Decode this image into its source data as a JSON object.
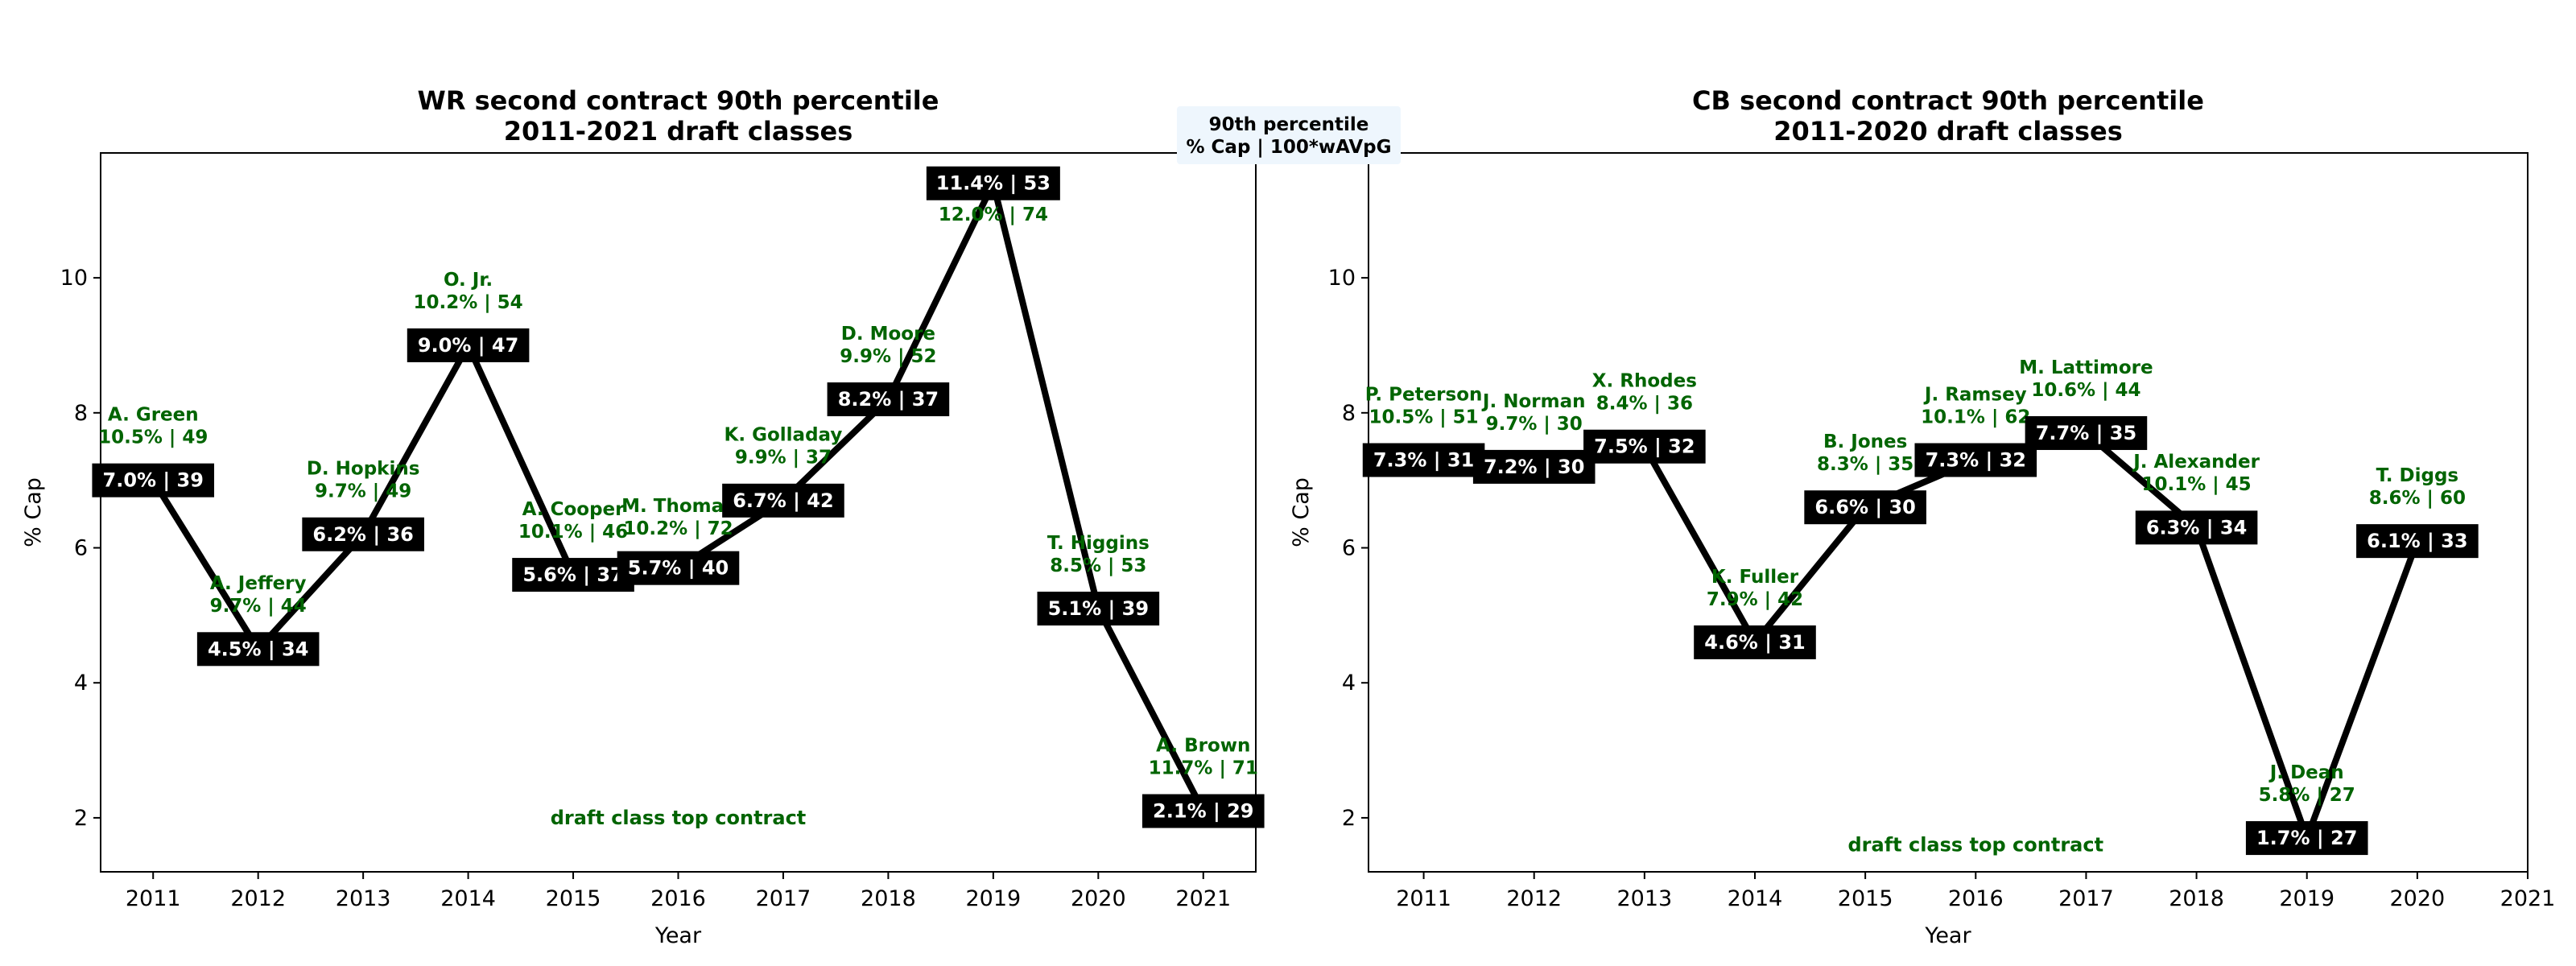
{
  "legend": {
    "line1": "90th percentile",
    "line2": "% Cap | 100*wAVpG",
    "bg": "#eef6fd"
  },
  "colors": {
    "line": "#000000",
    "label_box": "#000000",
    "label_text": "#ffffff",
    "annotation": "#006400"
  },
  "chart_data": [
    {
      "type": "line",
      "title_lines": [
        "WR second contract 90th percentile",
        "2011-2021 draft classes"
      ],
      "xlabel": "Year",
      "ylabel": "% Cap",
      "xlim": [
        2010.5,
        2021.5
      ],
      "ylim": [
        1.2,
        11.85
      ],
      "xticks": [
        2011,
        2012,
        2013,
        2014,
        2015,
        2016,
        2017,
        2018,
        2019,
        2020,
        2021
      ],
      "yticks": [
        2,
        4,
        6,
        8,
        10
      ],
      "x": [
        2011,
        2012,
        2013,
        2014,
        2015,
        2016,
        2017,
        2018,
        2019,
        2020,
        2021
      ],
      "y": [
        7.0,
        4.5,
        6.2,
        9.0,
        5.6,
        5.7,
        6.7,
        8.2,
        11.4,
        5.1,
        2.1
      ],
      "point_labels": [
        "7.0% | 39",
        "4.5% | 34",
        "6.2% | 36",
        "9.0% | 47",
        "5.6% | 37",
        "5.7% | 40",
        "6.7% | 42",
        "8.2% | 37",
        "11.4% | 53",
        "5.1% | 39",
        "2.1% | 29"
      ],
      "top_contracts": [
        {
          "name": "A. Green",
          "value": "10.5% | 49",
          "x": 2011,
          "y": 7.55
        },
        {
          "name": "A. Jeffery",
          "value": "9.7% | 44",
          "x": 2012,
          "y": 5.05
        },
        {
          "name": "D. Hopkins",
          "value": "9.7% | 49",
          "x": 2013,
          "y": 6.75
        },
        {
          "name": "O. Jr.",
          "value": "10.2% | 54",
          "x": 2014,
          "y": 9.55
        },
        {
          "name": "A. Cooper",
          "value": "10.1% | 46",
          "x": 2015,
          "y": 6.15
        },
        {
          "name": "M. Thomas",
          "value": "10.2% | 72",
          "x": 2016,
          "y": 6.2
        },
        {
          "name": "K. Golladay",
          "value": "9.9% | 37",
          "x": 2017,
          "y": 7.25
        },
        {
          "name": "D. Moore",
          "value": "9.9% | 52",
          "x": 2018,
          "y": 8.75
        },
        {
          "name": "A. Brown",
          "value": "12.0% | 74",
          "x": 2019,
          "y": 10.85
        },
        {
          "name": "T. Higgins",
          "value": "8.5% | 53",
          "x": 2020,
          "y": 5.65
        },
        {
          "name": "A. Brown",
          "value": "11.7% | 71",
          "x": 2021,
          "y": 2.65
        }
      ],
      "footnote": {
        "text": "draft class top contract",
        "x": 2016.0,
        "y": 2.0
      }
    },
    {
      "type": "line",
      "title_lines": [
        "CB second contract 90th percentile",
        "2011-2020 draft classes"
      ],
      "xlabel": "Year",
      "ylabel": "% Cap",
      "xlim": [
        2010.5,
        2021.0
      ],
      "ylim": [
        1.2,
        11.85
      ],
      "xticks": [
        2011,
        2012,
        2013,
        2014,
        2015,
        2016,
        2017,
        2018,
        2019,
        2020,
        2021
      ],
      "yticks": [
        2,
        4,
        6,
        8,
        10
      ],
      "x": [
        2011,
        2012,
        2013,
        2014,
        2015,
        2016,
        2017,
        2018,
        2019,
        2020
      ],
      "y": [
        7.3,
        7.2,
        7.5,
        4.6,
        6.6,
        7.3,
        7.7,
        6.3,
        1.7,
        6.1
      ],
      "point_labels": [
        "7.3% | 31",
        "7.2% | 30",
        "7.5% | 32",
        "4.6% | 31",
        "6.6% | 30",
        "7.3% | 32",
        "7.7% | 35",
        "6.3% | 34",
        "1.7% | 27",
        "6.1% | 33"
      ],
      "top_contracts": [
        {
          "name": "P. Peterson",
          "value": "10.5% | 51",
          "x": 2011,
          "y": 7.85
        },
        {
          "name": "J. Norman",
          "value": "9.7% | 30",
          "x": 2012,
          "y": 7.75
        },
        {
          "name": "X. Rhodes",
          "value": "8.4% | 36",
          "x": 2013,
          "y": 8.05
        },
        {
          "name": "K. Fuller",
          "value": "7.9% | 42",
          "x": 2014,
          "y": 5.15
        },
        {
          "name": "B. Jones",
          "value": "8.3% | 35",
          "x": 2015,
          "y": 7.15
        },
        {
          "name": "J. Ramsey",
          "value": "10.1% | 62",
          "x": 2016,
          "y": 7.85
        },
        {
          "name": "M. Lattimore",
          "value": "10.6% | 44",
          "x": 2017,
          "y": 8.25
        },
        {
          "name": "J. Alexander",
          "value": "10.1% | 45",
          "x": 2018,
          "y": 6.85
        },
        {
          "name": "J. Dean",
          "value": "5.8% | 27",
          "x": 2019,
          "y": 2.25
        },
        {
          "name": "T. Diggs",
          "value": "8.6% | 60",
          "x": 2020,
          "y": 6.65
        }
      ],
      "footnote": {
        "text": "draft class top contract",
        "x": 2016.0,
        "y": 1.6
      }
    }
  ]
}
